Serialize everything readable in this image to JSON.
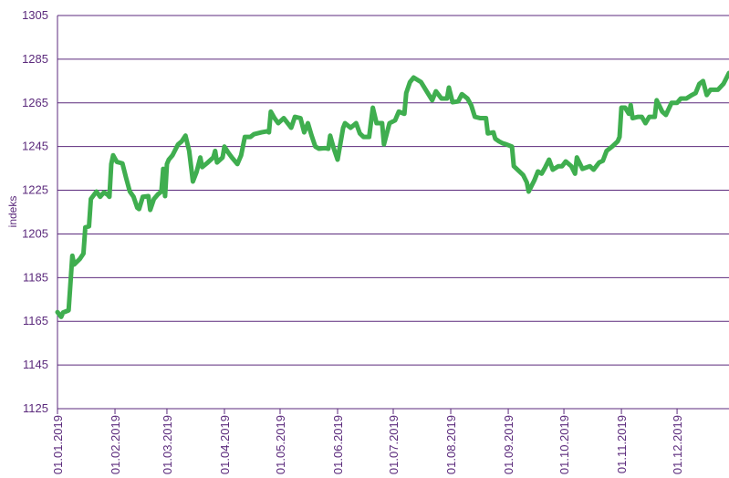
{
  "chart_data": {
    "type": "line",
    "y_label": "indeks",
    "x": [
      "2019-01-01",
      "2019-01-03",
      "2019-01-04",
      "2019-01-07",
      "2019-01-09",
      "2019-01-10",
      "2019-01-13",
      "2019-01-15",
      "2019-01-16",
      "2019-01-18",
      "2019-01-19",
      "2019-01-22",
      "2019-01-24",
      "2019-01-26",
      "2019-01-28",
      "2019-01-29",
      "2019-01-30",
      "2019-01-31",
      "2019-02-02",
      "2019-02-05",
      "2019-02-07",
      "2019-02-09",
      "2019-02-11",
      "2019-02-13",
      "2019-02-14",
      "2019-02-16",
      "2019-02-19",
      "2019-02-20",
      "2019-02-22",
      "2019-02-24",
      "2019-02-26",
      "2019-02-27",
      "2019-02-28",
      "2019-03-01",
      "2019-03-02",
      "2019-03-04",
      "2019-03-07",
      "2019-03-09",
      "2019-03-11",
      "2019-03-13",
      "2019-03-15",
      "2019-03-17",
      "2019-03-19",
      "2019-03-20",
      "2019-03-23",
      "2019-03-26",
      "2019-03-27",
      "2019-03-28",
      "2019-03-31",
      "2019-04-01",
      "2019-04-03",
      "2019-04-05",
      "2019-04-08",
      "2019-04-10",
      "2019-04-12",
      "2019-04-15",
      "2019-04-17",
      "2019-04-21",
      "2019-04-24",
      "2019-04-25",
      "2019-04-26",
      "2019-04-28",
      "2019-04-30",
      "2019-05-03",
      "2019-05-07",
      "2019-05-09",
      "2019-05-12",
      "2019-05-14",
      "2019-05-16",
      "2019-05-18",
      "2019-05-20",
      "2019-05-22",
      "2019-05-25",
      "2019-05-27",
      "2019-05-28",
      "2019-05-30",
      "2019-06-01",
      "2019-06-04",
      "2019-06-05",
      "2019-06-08",
      "2019-06-11",
      "2019-06-13",
      "2019-06-15",
      "2019-06-18",
      "2019-06-20",
      "2019-06-22",
      "2019-06-25",
      "2019-06-26",
      "2019-06-29",
      "2019-07-02",
      "2019-07-04",
      "2019-07-07",
      "2019-07-08",
      "2019-07-10",
      "2019-07-12",
      "2019-07-16",
      "2019-07-19",
      "2019-07-22",
      "2019-07-24",
      "2019-07-27",
      "2019-07-30",
      "2019-07-31",
      "2019-08-02",
      "2019-08-05",
      "2019-08-07",
      "2019-08-10",
      "2019-08-12",
      "2019-08-14",
      "2019-08-17",
      "2019-08-20",
      "2019-08-21",
      "2019-08-24",
      "2019-08-25",
      "2019-08-27",
      "2019-08-29",
      "2019-08-31",
      "2019-09-03",
      "2019-09-04",
      "2019-09-07",
      "2019-09-09",
      "2019-09-11",
      "2019-09-12",
      "2019-09-15",
      "2019-09-17",
      "2019-09-19",
      "2019-09-21",
      "2019-09-23",
      "2019-09-25",
      "2019-09-28",
      "2019-09-30",
      "2019-10-02",
      "2019-10-05",
      "2019-10-07",
      "2019-10-08",
      "2019-10-11",
      "2019-10-15",
      "2019-10-17",
      "2019-10-20",
      "2019-10-22",
      "2019-10-24",
      "2019-10-27",
      "2019-10-30",
      "2019-10-31",
      "2019-11-01",
      "2019-11-03",
      "2019-11-05",
      "2019-11-06",
      "2019-11-07",
      "2019-11-10",
      "2019-11-12",
      "2019-11-14",
      "2019-11-16",
      "2019-11-19",
      "2019-11-20",
      "2019-11-23",
      "2019-11-25",
      "2019-11-28",
      "2019-12-01",
      "2019-12-03",
      "2019-12-06",
      "2019-12-09",
      "2019-12-11",
      "2019-12-13",
      "2019-12-15",
      "2019-12-17",
      "2019-12-19",
      "2019-12-23",
      "2019-12-26",
      "2019-12-29"
    ],
    "series": [
      {
        "color": "#3fae4f",
        "values": [
          1169.2,
          1167,
          1169,
          1170,
          1195,
          1191,
          1193.5,
          1196,
          1208,
          1208.5,
          1221,
          1224.4,
          1222,
          1224,
          1223,
          1222,
          1237,
          1241,
          1238,
          1237.3,
          1230.6,
          1224.4,
          1222,
          1217,
          1216.4,
          1222,
          1222.3,
          1216,
          1221,
          1223,
          1224.4,
          1234.8,
          1222.3,
          1237,
          1239,
          1241,
          1246,
          1247.4,
          1250,
          1243,
          1229,
          1233.4,
          1240,
          1235.6,
          1237.7,
          1240,
          1243,
          1237.7,
          1240,
          1245,
          1242.3,
          1240,
          1237,
          1241,
          1249.4,
          1249.4,
          1250.7,
          1251.5,
          1252,
          1251.5,
          1261,
          1258,
          1255.7,
          1258,
          1253.6,
          1258.6,
          1258,
          1251.5,
          1255.7,
          1250,
          1245,
          1244,
          1244.3,
          1244,
          1250,
          1244,
          1239,
          1253.6,
          1255.7,
          1253.6,
          1255.7,
          1251,
          1249.4,
          1249.4,
          1262.8,
          1255.7,
          1255.7,
          1246,
          1255.7,
          1257,
          1261,
          1260,
          1269.5,
          1274.5,
          1276.6,
          1274.5,
          1270.3,
          1266.2,
          1270.3,
          1267,
          1267,
          1272,
          1265.3,
          1265.7,
          1269,
          1267,
          1264,
          1258.6,
          1258,
          1258,
          1251,
          1251.5,
          1248.6,
          1247.4,
          1246.5,
          1246,
          1245,
          1236,
          1233.6,
          1232,
          1228.6,
          1224.4,
          1229.4,
          1233.6,
          1232.6,
          1235.6,
          1239,
          1234.4,
          1236,
          1236,
          1238.2,
          1236,
          1232.6,
          1240,
          1234.8,
          1236,
          1234.4,
          1237.7,
          1238.5,
          1243,
          1245,
          1247.4,
          1249.4,
          1262.8,
          1262.8,
          1260,
          1264,
          1258,
          1258.6,
          1258.6,
          1255.7,
          1258.6,
          1258.6,
          1266.2,
          1261,
          1259.5,
          1265,
          1265,
          1267,
          1267,
          1268.6,
          1269.5,
          1273.7,
          1275,
          1268.6,
          1271,
          1271,
          1273.7,
          1278.7
        ]
      }
    ],
    "xlim": [
      "2019-01-01",
      "2019-12-29"
    ],
    "xticks": [
      {
        "value": "2019-01-01",
        "label": "01.01.2019"
      },
      {
        "value": "2019-02-01",
        "label": "01.02.2019"
      },
      {
        "value": "2019-03-01",
        "label": "01.03.2019"
      },
      {
        "value": "2019-04-01",
        "label": "01.04.2019"
      },
      {
        "value": "2019-05-01",
        "label": "01.05.2019"
      },
      {
        "value": "2019-06-01",
        "label": "01.06.2019"
      },
      {
        "value": "2019-07-01",
        "label": "01.07.2019"
      },
      {
        "value": "2019-08-01",
        "label": "01.08.2019"
      },
      {
        "value": "2019-09-01",
        "label": "01.09.2019"
      },
      {
        "value": "2019-10-01",
        "label": "01.10.2019"
      },
      {
        "value": "2019-11-01",
        "label": "01.11.2019"
      },
      {
        "value": "2019-12-01",
        "label": "01.12.2019"
      }
    ],
    "ylim": [
      1125,
      1305
    ],
    "yticks": [
      1125,
      1145,
      1165,
      1185,
      1205,
      1225,
      1245,
      1265,
      1285,
      1305
    ],
    "grid": true
  }
}
